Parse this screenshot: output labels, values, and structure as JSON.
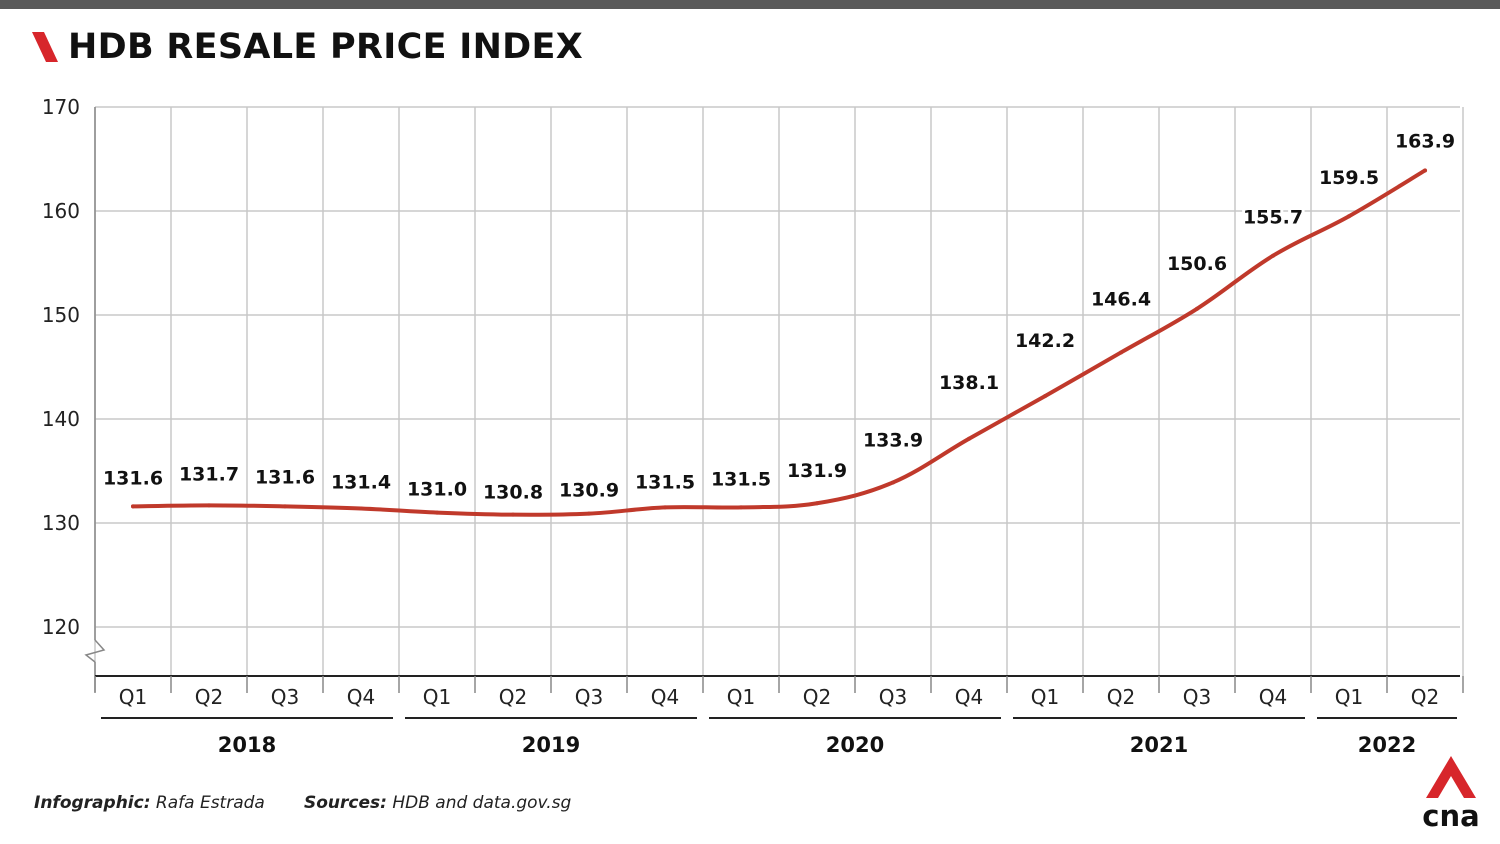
{
  "header": {
    "title": "HDB RESALE PRICE INDEX"
  },
  "footer": {
    "credit_label": "Infographic:",
    "credit_value": "Rafa Estrada",
    "sources_label": "Sources:",
    "sources_value": "HDB and data.gov.sg"
  },
  "colors": {
    "line": "#c0392b",
    "accent": "#d7262b",
    "grid": "#c8c8c8",
    "axis": "#222222"
  },
  "icons": {
    "title_mark": "red-slash-icon",
    "logo": "cna-logo"
  },
  "chart_data": {
    "type": "line",
    "title": "HDB RESALE PRICE INDEX",
    "xlabel": "",
    "ylabel": "",
    "ylim": [
      115,
      170
    ],
    "yticks": [
      120,
      130,
      140,
      150,
      160,
      170
    ],
    "axis_break": true,
    "grid": true,
    "categories": [
      "Q1",
      "Q2",
      "Q3",
      "Q4",
      "Q1",
      "Q2",
      "Q3",
      "Q4",
      "Q1",
      "Q2",
      "Q3",
      "Q4",
      "Q1",
      "Q2",
      "Q3",
      "Q4",
      "Q1",
      "Q2"
    ],
    "years": [
      {
        "label": "2018",
        "quarters": 4
      },
      {
        "label": "2019",
        "quarters": 4
      },
      {
        "label": "2020",
        "quarters": 4
      },
      {
        "label": "2021",
        "quarters": 4
      },
      {
        "label": "2022",
        "quarters": 2
      }
    ],
    "series": [
      {
        "values": [
          131.6,
          131.7,
          131.6,
          131.4,
          131.0,
          130.8,
          130.9,
          131.5,
          131.5,
          131.9,
          133.9,
          138.1,
          142.2,
          146.4,
          150.6,
          155.7,
          159.5,
          163.9
        ],
        "labels": [
          "131.6",
          "131.7",
          "131.6",
          "131.4",
          "131.0",
          "130.8",
          "130.9",
          "131.5",
          "131.5",
          "131.9",
          "133.9",
          "138.1",
          "142.2",
          "146.4",
          "150.6",
          "155.7",
          "159.5",
          "163.9"
        ]
      }
    ]
  }
}
